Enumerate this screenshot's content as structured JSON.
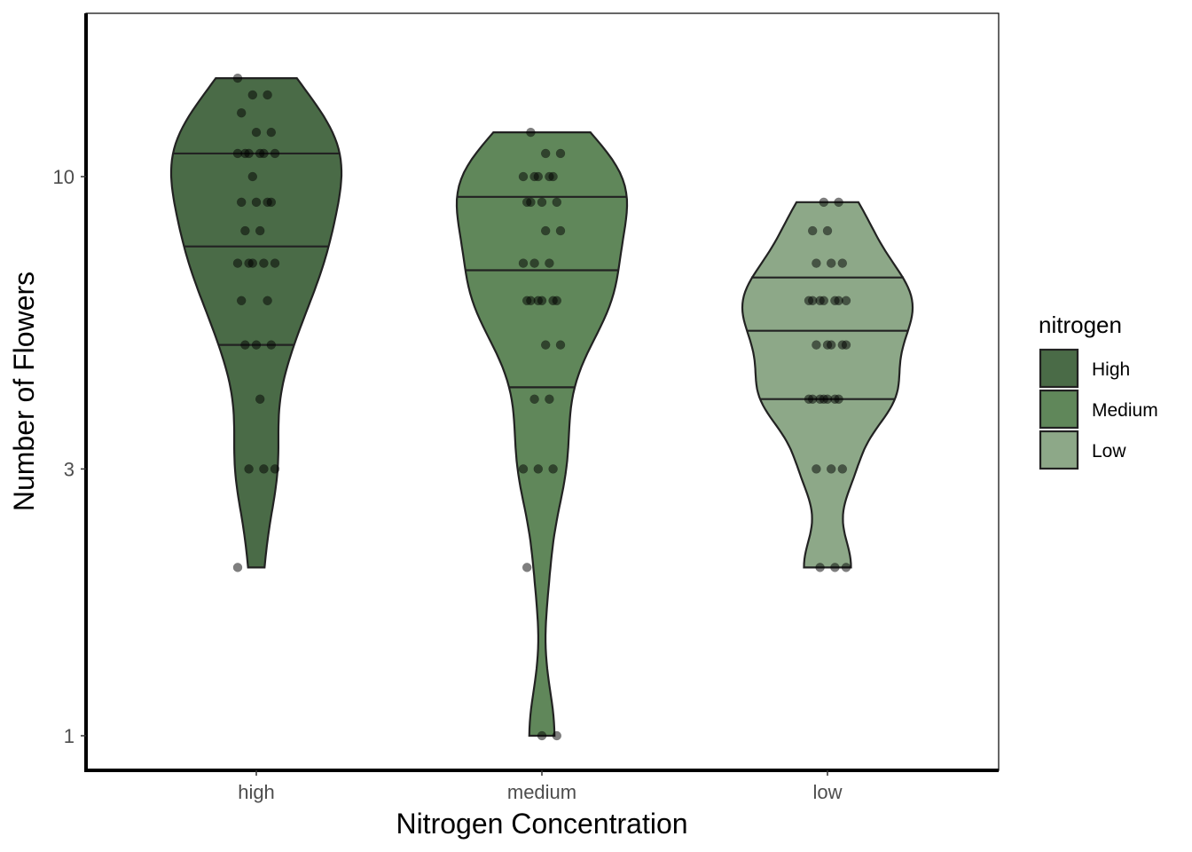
{
  "chart_data": {
    "type": "violin",
    "xlabel": "Nitrogen Concentration",
    "ylabel": "Number of Flowers",
    "y_scale": "log10",
    "ylim": [
      0.9,
      16
    ],
    "y_ticks": [
      1,
      3,
      10
    ],
    "categories": [
      "high",
      "medium",
      "low"
    ],
    "quantiles_drawn": [
      0.25,
      0.5,
      0.75
    ],
    "legend": {
      "title": "nitrogen",
      "position": "right",
      "entries": [
        {
          "label": "High",
          "color": "#4a6b47"
        },
        {
          "label": "Medium",
          "color": "#60875a"
        },
        {
          "label": "Low",
          "color": "#8da888"
        }
      ]
    },
    "series": [
      {
        "name": "High",
        "category": "high",
        "color": "#4a6b47",
        "range": [
          2,
          15
        ],
        "quartiles": [
          5,
          7.5,
          11
        ],
        "points": [
          15,
          14,
          14,
          13,
          12,
          12,
          11,
          11,
          11,
          11,
          11,
          11,
          10,
          9,
          9,
          9,
          9,
          8,
          8,
          7,
          7,
          7,
          7,
          7,
          6,
          6,
          5,
          5,
          5,
          4,
          3,
          3,
          3,
          2
        ]
      },
      {
        "name": "Medium",
        "category": "medium",
        "color": "#60875a",
        "range": [
          1,
          12
        ],
        "quartiles": [
          4.2,
          6.8,
          9.2
        ],
        "points": [
          12,
          11,
          11,
          10,
          10,
          10,
          10,
          10,
          9,
          9,
          9,
          9,
          8,
          8,
          7,
          7,
          7,
          6,
          6,
          6,
          6,
          6,
          6,
          5,
          5,
          4,
          4,
          3,
          3,
          3,
          2,
          1,
          1
        ]
      },
      {
        "name": "Low",
        "category": "low",
        "color": "#8da888",
        "range": [
          2,
          9
        ],
        "quartiles": [
          4,
          5.3,
          6.6
        ],
        "points": [
          9,
          9,
          8,
          8,
          7,
          7,
          7,
          6,
          6,
          6,
          6,
          6,
          6,
          6,
          5,
          5,
          5,
          5,
          5,
          4,
          4,
          4,
          4,
          4,
          4,
          4,
          3,
          3,
          3,
          2,
          2,
          2
        ]
      }
    ]
  }
}
